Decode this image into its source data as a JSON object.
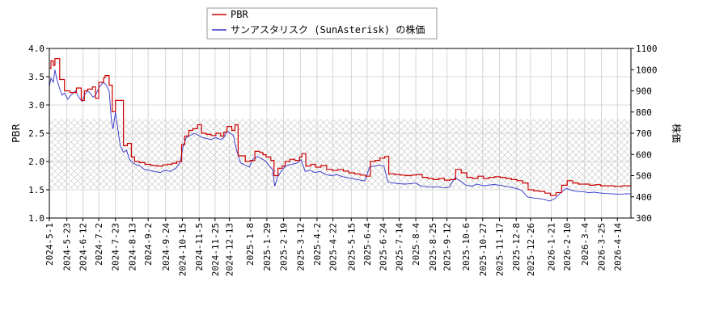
{
  "chart_data": {
    "type": "line",
    "title": "",
    "xlabel": "",
    "ylabel_left": "PBR",
    "ylabel_right": "株価",
    "ylim_left": [
      1.0,
      4.0
    ],
    "ylim_right": [
      300,
      1100
    ],
    "yticks_left": [
      "1.0",
      "1.5",
      "2.0",
      "2.5",
      "3.0",
      "3.5",
      "4.0"
    ],
    "yticks_right": [
      "300",
      "400",
      "500",
      "600",
      "700",
      "800",
      "900",
      "1000",
      "1100"
    ],
    "x_start": "2024-05-01",
    "x_end": "2026-05-01",
    "xtick_labels": [
      "2024-5-1",
      "2024-5-23",
      "2024-6-12",
      "2024-7-2",
      "2024-7-23",
      "2024-8-13",
      "2024-9-2",
      "2024-9-24",
      "2024-10-15",
      "2024-11-5",
      "2024-11-25",
      "2024-12-13",
      "2025-1-8",
      "2025-1-29",
      "2025-2-19",
      "2025-3-12",
      "2025-4-2",
      "2025-4-22",
      "2025-5-15",
      "2025-6-4",
      "2025-6-24",
      "2025-7-14",
      "2025-8-4",
      "2025-8-25",
      "2025-9-12",
      "2025-10-6",
      "2025-10-27",
      "2025-11-17",
      "2025-12-8",
      "2025-12-26",
      "2026-1-21",
      "2026-2-10",
      "2026-3-4",
      "2026-3-25",
      "2026-4-14"
    ],
    "shaded_band_pbr": [
      1.52,
      2.75
    ],
    "grid": true,
    "legend_position": "top-center",
    "series": [
      {
        "name": "PBR",
        "axis": "left",
        "color": "#cc0000",
        "style": "step",
        "points": [
          [
            "2024-05-01",
            3.65
          ],
          [
            "2024-05-03",
            3.78
          ],
          [
            "2024-05-06",
            3.7
          ],
          [
            "2024-05-08",
            3.82
          ],
          [
            "2024-05-14",
            3.45
          ],
          [
            "2024-05-20",
            3.25
          ],
          [
            "2024-05-27",
            3.22
          ],
          [
            "2024-06-04",
            3.3
          ],
          [
            "2024-06-10",
            3.08
          ],
          [
            "2024-06-14",
            3.25
          ],
          [
            "2024-06-18",
            3.28
          ],
          [
            "2024-06-24",
            3.32
          ],
          [
            "2024-06-28",
            3.12
          ],
          [
            "2024-07-02",
            3.4
          ],
          [
            "2024-07-08",
            3.48
          ],
          [
            "2024-07-10",
            3.52
          ],
          [
            "2024-07-15",
            3.35
          ],
          [
            "2024-07-19",
            2.88
          ],
          [
            "2024-07-23",
            3.08
          ],
          [
            "2024-08-02",
            2.28
          ],
          [
            "2024-08-07",
            2.32
          ],
          [
            "2024-08-12",
            2.08
          ],
          [
            "2024-08-16",
            2.0
          ],
          [
            "2024-08-22",
            1.98
          ],
          [
            "2024-08-29",
            1.95
          ],
          [
            "2024-09-05",
            1.93
          ],
          [
            "2024-09-13",
            1.92
          ],
          [
            "2024-09-20",
            1.94
          ],
          [
            "2024-09-26",
            1.95
          ],
          [
            "2024-10-02",
            1.97
          ],
          [
            "2024-10-08",
            2.0
          ],
          [
            "2024-10-14",
            2.3
          ],
          [
            "2024-10-18",
            2.45
          ],
          [
            "2024-10-23",
            2.55
          ],
          [
            "2024-10-28",
            2.58
          ],
          [
            "2024-11-03",
            2.65
          ],
          [
            "2024-11-08",
            2.5
          ],
          [
            "2024-11-14",
            2.48
          ],
          [
            "2024-11-20",
            2.46
          ],
          [
            "2024-11-26",
            2.5
          ],
          [
            "2024-12-02",
            2.45
          ],
          [
            "2024-12-06",
            2.52
          ],
          [
            "2024-12-10",
            2.62
          ],
          [
            "2024-12-16",
            2.55
          ],
          [
            "2024-12-20",
            2.65
          ],
          [
            "2024-12-24",
            2.1
          ],
          [
            "2025-01-02",
            2.0
          ],
          [
            "2025-01-08",
            2.02
          ],
          [
            "2025-01-14",
            2.18
          ],
          [
            "2025-01-20",
            2.16
          ],
          [
            "2025-01-24",
            2.12
          ],
          [
            "2025-01-28",
            2.08
          ],
          [
            "2025-02-03",
            2.02
          ],
          [
            "2025-02-07",
            1.75
          ],
          [
            "2025-02-12",
            1.88
          ],
          [
            "2025-02-17",
            1.92
          ],
          [
            "2025-02-21",
            2.0
          ],
          [
            "2025-02-27",
            2.04
          ],
          [
            "2025-03-05",
            2.02
          ],
          [
            "2025-03-11",
            2.08
          ],
          [
            "2025-03-14",
            2.14
          ],
          [
            "2025-03-19",
            1.92
          ],
          [
            "2025-03-25",
            1.95
          ],
          [
            "2025-03-31",
            1.9
          ],
          [
            "2025-04-07",
            1.93
          ],
          [
            "2025-04-14",
            1.86
          ],
          [
            "2025-04-21",
            1.84
          ],
          [
            "2025-04-28",
            1.86
          ],
          [
            "2025-05-05",
            1.83
          ],
          [
            "2025-05-12",
            1.8
          ],
          [
            "2025-05-19",
            1.78
          ],
          [
            "2025-05-26",
            1.76
          ],
          [
            "2025-06-02",
            1.74
          ],
          [
            "2025-06-08",
            2.0
          ],
          [
            "2025-06-14",
            2.02
          ],
          [
            "2025-06-20",
            2.06
          ],
          [
            "2025-06-26",
            2.09
          ],
          [
            "2025-07-01",
            1.78
          ],
          [
            "2025-07-08",
            1.77
          ],
          [
            "2025-07-15",
            1.76
          ],
          [
            "2025-07-22",
            1.75
          ],
          [
            "2025-07-29",
            1.76
          ],
          [
            "2025-08-05",
            1.77
          ],
          [
            "2025-08-12",
            1.72
          ],
          [
            "2025-08-19",
            1.7
          ],
          [
            "2025-08-26",
            1.68
          ],
          [
            "2025-09-02",
            1.7
          ],
          [
            "2025-09-09",
            1.67
          ],
          [
            "2025-09-16",
            1.68
          ],
          [
            "2025-09-23",
            1.86
          ],
          [
            "2025-09-30",
            1.8
          ],
          [
            "2025-10-07",
            1.72
          ],
          [
            "2025-10-14",
            1.7
          ],
          [
            "2025-10-21",
            1.74
          ],
          [
            "2025-10-28",
            1.7
          ],
          [
            "2025-11-04",
            1.72
          ],
          [
            "2025-11-11",
            1.73
          ],
          [
            "2025-11-18",
            1.72
          ],
          [
            "2025-11-25",
            1.7
          ],
          [
            "2025-12-02",
            1.68
          ],
          [
            "2025-12-09",
            1.66
          ],
          [
            "2025-12-16",
            1.62
          ],
          [
            "2025-12-23",
            1.5
          ],
          [
            "2025-12-30",
            1.48
          ],
          [
            "2026-01-06",
            1.47
          ],
          [
            "2026-01-13",
            1.44
          ],
          [
            "2026-01-20",
            1.4
          ],
          [
            "2026-01-27",
            1.45
          ],
          [
            "2026-02-03",
            1.58
          ],
          [
            "2026-02-10",
            1.66
          ],
          [
            "2026-02-17",
            1.62
          ],
          [
            "2026-02-24",
            1.6
          ],
          [
            "2026-03-03",
            1.6
          ],
          [
            "2026-03-10",
            1.58
          ],
          [
            "2026-03-17",
            1.59
          ],
          [
            "2026-03-24",
            1.57
          ],
          [
            "2026-04-01",
            1.57
          ],
          [
            "2026-04-10",
            1.56
          ],
          [
            "2026-04-20",
            1.57
          ],
          [
            "2026-05-01",
            1.58
          ]
        ]
      },
      {
        "name": "サンアスタリスク (SunAsterisk) の株価",
        "axis": "right",
        "color": "#3333cc",
        "style": "line",
        "points": [
          [
            "2024-05-01",
            920
          ],
          [
            "2024-05-03",
            960
          ],
          [
            "2024-05-06",
            940
          ],
          [
            "2024-05-08",
            1000
          ],
          [
            "2024-05-10",
            960
          ],
          [
            "2024-05-14",
            910
          ],
          [
            "2024-05-17",
            880
          ],
          [
            "2024-05-20",
            890
          ],
          [
            "2024-05-24",
            860
          ],
          [
            "2024-05-28",
            880
          ],
          [
            "2024-06-03",
            900
          ],
          [
            "2024-06-07",
            870
          ],
          [
            "2024-06-11",
            850
          ],
          [
            "2024-06-14",
            880
          ],
          [
            "2024-06-18",
            900
          ],
          [
            "2024-06-21",
            890
          ],
          [
            "2024-06-25",
            870
          ],
          [
            "2024-06-28",
            880
          ],
          [
            "2024-07-03",
            920
          ],
          [
            "2024-07-08",
            940
          ],
          [
            "2024-07-11",
            930
          ],
          [
            "2024-07-15",
            900
          ],
          [
            "2024-07-18",
            760
          ],
          [
            "2024-07-20",
            720
          ],
          [
            "2024-07-23",
            800
          ],
          [
            "2024-07-29",
            640
          ],
          [
            "2024-08-02",
            610
          ],
          [
            "2024-08-06",
            620
          ],
          [
            "2024-08-09",
            580
          ],
          [
            "2024-08-14",
            560
          ],
          [
            "2024-08-19",
            550
          ],
          [
            "2024-08-23",
            545
          ],
          [
            "2024-08-28",
            530
          ],
          [
            "2024-09-03",
            525
          ],
          [
            "2024-09-10",
            520
          ],
          [
            "2024-09-17",
            515
          ],
          [
            "2024-09-23",
            525
          ],
          [
            "2024-09-30",
            520
          ],
          [
            "2024-10-07",
            535
          ],
          [
            "2024-10-12",
            560
          ],
          [
            "2024-10-16",
            640
          ],
          [
            "2024-10-20",
            680
          ],
          [
            "2024-10-25",
            690
          ],
          [
            "2024-10-30",
            700
          ],
          [
            "2024-11-04",
            690
          ],
          [
            "2024-11-09",
            680
          ],
          [
            "2024-11-15",
            675
          ],
          [
            "2024-11-20",
            670
          ],
          [
            "2024-11-26",
            680
          ],
          [
            "2024-12-02",
            670
          ],
          [
            "2024-12-06",
            680
          ],
          [
            "2024-12-10",
            710
          ],
          [
            "2024-12-14",
            700
          ],
          [
            "2024-12-18",
            690
          ],
          [
            "2024-12-22",
            620
          ],
          [
            "2024-12-27",
            560
          ],
          [
            "2025-01-02",
            550
          ],
          [
            "2025-01-07",
            540
          ],
          [
            "2025-01-12",
            580
          ],
          [
            "2025-01-17",
            590
          ],
          [
            "2025-01-22",
            580
          ],
          [
            "2025-01-27",
            570
          ],
          [
            "2025-02-01",
            545
          ],
          [
            "2025-02-05",
            530
          ],
          [
            "2025-02-08",
            450
          ],
          [
            "2025-02-11",
            490
          ],
          [
            "2025-02-16",
            520
          ],
          [
            "2025-02-20",
            540
          ],
          [
            "2025-02-25",
            550
          ],
          [
            "2025-03-03",
            555
          ],
          [
            "2025-03-08",
            560
          ],
          [
            "2025-03-13",
            575
          ],
          [
            "2025-03-18",
            520
          ],
          [
            "2025-03-24",
            525
          ],
          [
            "2025-03-30",
            515
          ],
          [
            "2025-04-06",
            520
          ],
          [
            "2025-04-13",
            505
          ],
          [
            "2025-04-20",
            500
          ],
          [
            "2025-04-27",
            505
          ],
          [
            "2025-05-04",
            495
          ],
          [
            "2025-05-11",
            490
          ],
          [
            "2025-05-18",
            485
          ],
          [
            "2025-05-25",
            480
          ],
          [
            "2025-06-01",
            475
          ],
          [
            "2025-06-07",
            540
          ],
          [
            "2025-06-13",
            545
          ],
          [
            "2025-06-19",
            550
          ],
          [
            "2025-06-25",
            545
          ],
          [
            "2025-06-30",
            470
          ],
          [
            "2025-07-07",
            465
          ],
          [
            "2025-07-14",
            462
          ],
          [
            "2025-07-21",
            460
          ],
          [
            "2025-07-28",
            462
          ],
          [
            "2025-08-04",
            465
          ],
          [
            "2025-08-11",
            450
          ],
          [
            "2025-08-18",
            448
          ],
          [
            "2025-08-25",
            445
          ],
          [
            "2025-09-01",
            448
          ],
          [
            "2025-09-08",
            442
          ],
          [
            "2025-09-15",
            445
          ],
          [
            "2025-09-22",
            490
          ],
          [
            "2025-09-29",
            475
          ],
          [
            "2025-10-06",
            455
          ],
          [
            "2025-10-13",
            450
          ],
          [
            "2025-10-20",
            460
          ],
          [
            "2025-10-27",
            452
          ],
          [
            "2025-11-03",
            455
          ],
          [
            "2025-11-10",
            458
          ],
          [
            "2025-11-17",
            455
          ],
          [
            "2025-11-24",
            450
          ],
          [
            "2025-12-01",
            445
          ],
          [
            "2025-12-08",
            440
          ],
          [
            "2025-12-15",
            430
          ],
          [
            "2025-12-22",
            400
          ],
          [
            "2025-12-29",
            395
          ],
          [
            "2026-01-05",
            392
          ],
          [
            "2026-01-12",
            388
          ],
          [
            "2026-01-19",
            380
          ],
          [
            "2026-01-26",
            392
          ],
          [
            "2026-02-02",
            420
          ],
          [
            "2026-02-09",
            440
          ],
          [
            "2026-02-16",
            430
          ],
          [
            "2026-02-23",
            425
          ],
          [
            "2026-03-02",
            424
          ],
          [
            "2026-03-09",
            420
          ],
          [
            "2026-03-16",
            422
          ],
          [
            "2026-03-23",
            418
          ],
          [
            "2026-03-30",
            416
          ],
          [
            "2026-04-08",
            414
          ],
          [
            "2026-04-18",
            412
          ],
          [
            "2026-04-26",
            415
          ],
          [
            "2026-05-01",
            413
          ]
        ]
      }
    ]
  }
}
